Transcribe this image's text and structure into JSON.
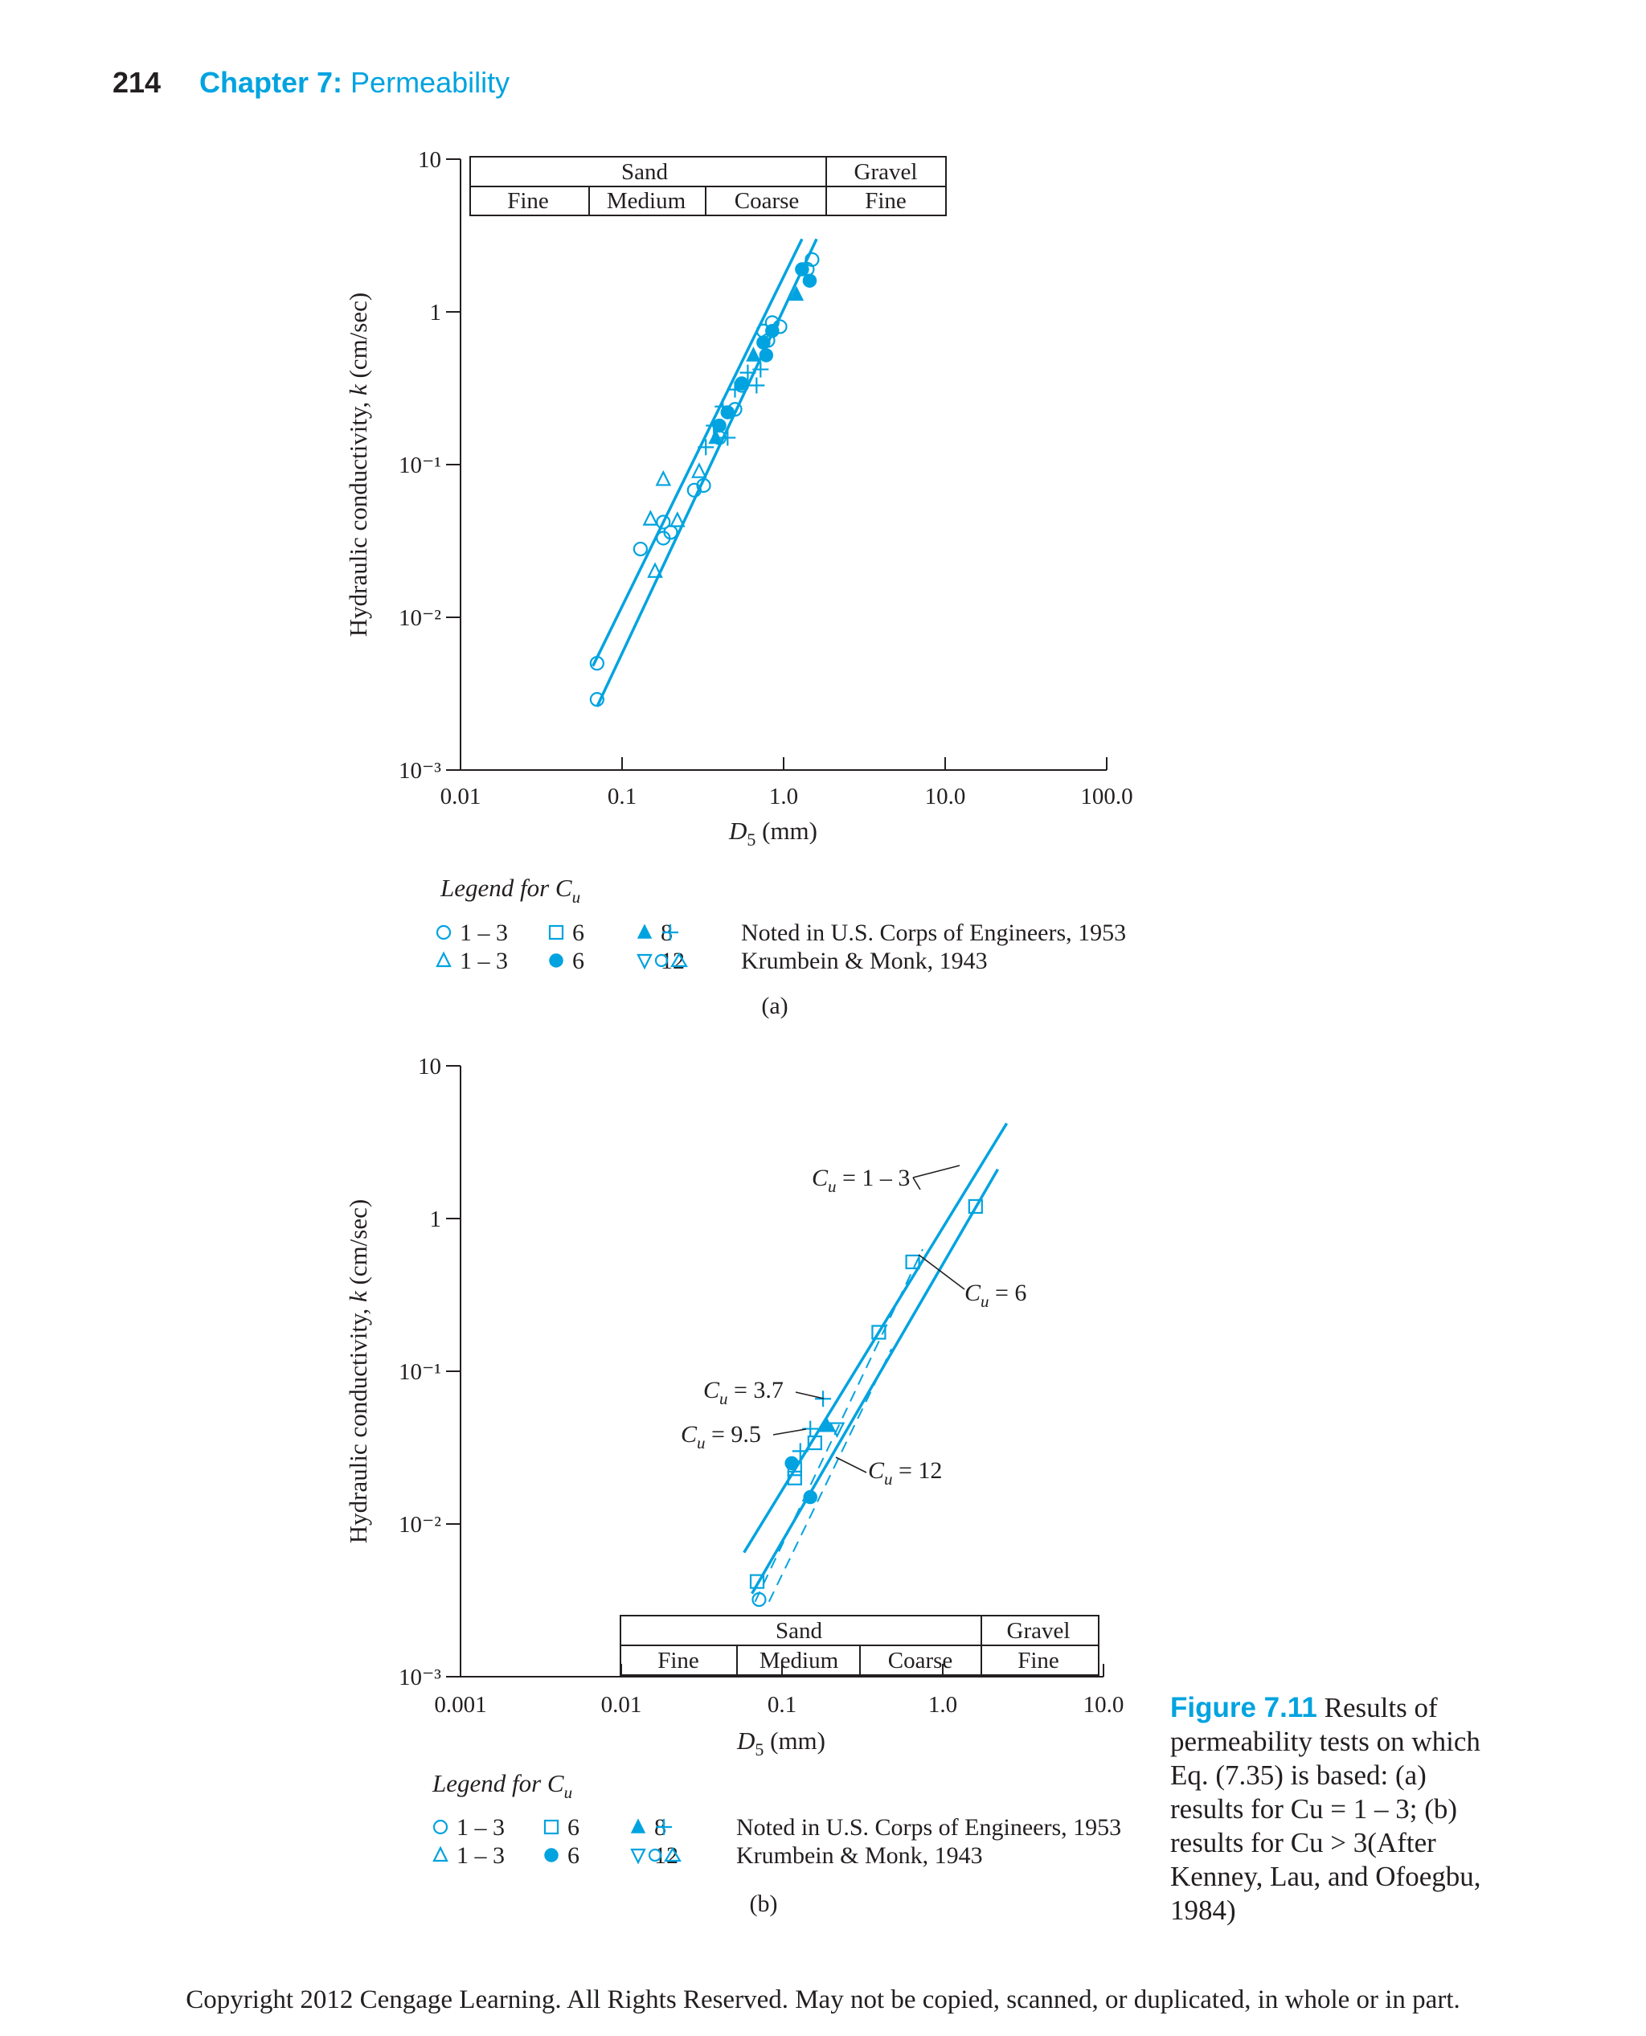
{
  "header": {
    "page_number": "214",
    "chapter_label": "Chapter 7:",
    "chapter_title": "Permeability"
  },
  "colors": {
    "accent": "#00a3e0",
    "text": "#231f20"
  },
  "chart_data": [
    {
      "type": "scatter",
      "panel_label": "(a)",
      "xlabel": "D5 (mm)",
      "ylabel": "Hydraulic conductivity, k (cm/sec)",
      "x_scale": "log",
      "y_scale": "log",
      "xlim": [
        0.01,
        100
      ],
      "ylim": [
        0.001,
        10
      ],
      "xticks": [
        "0.01",
        "0.1",
        "1.0",
        "10.0",
        "100.0"
      ],
      "yticks": [
        "10⁻³",
        "10⁻²",
        "10⁻¹",
        "1",
        "10"
      ],
      "grain_size_table": {
        "groups": [
          "Sand",
          "Gravel"
        ],
        "classes": [
          "Fine",
          "Medium",
          "Coarse",
          "Fine"
        ]
      },
      "series": [
        {
          "marker": "circle-open",
          "label": "1 – 3",
          "points": [
            [
              0.07,
              0.005
            ],
            [
              0.07,
              0.0029
            ],
            [
              0.13,
              0.028
            ],
            [
              0.18,
              0.042
            ],
            [
              0.18,
              0.033
            ],
            [
              0.2,
              0.036
            ],
            [
              0.28,
              0.068
            ],
            [
              0.32,
              0.073
            ],
            [
              0.4,
              0.15
            ],
            [
              0.5,
              0.23
            ],
            [
              0.55,
              0.33
            ],
            [
              0.75,
              0.75
            ],
            [
              0.8,
              0.65
            ],
            [
              0.85,
              0.85
            ],
            [
              0.95,
              0.8
            ],
            [
              1.4,
              1.9
            ],
            [
              1.5,
              2.2
            ]
          ]
        },
        {
          "marker": "triangle-open",
          "label": "1 – 3",
          "points": [
            [
              0.15,
              0.044
            ],
            [
              0.16,
              0.02
            ],
            [
              0.18,
              0.08
            ],
            [
              0.22,
              0.043
            ],
            [
              0.3,
              0.09
            ]
          ]
        },
        {
          "marker": "circle-filled",
          "label": "6",
          "points": [
            [
              0.4,
              0.18
            ],
            [
              0.45,
              0.22
            ],
            [
              0.55,
              0.34
            ],
            [
              0.75,
              0.63
            ],
            [
              0.78,
              0.52
            ],
            [
              0.85,
              0.75
            ],
            [
              1.3,
              1.9
            ],
            [
              1.45,
              1.6
            ]
          ]
        },
        {
          "marker": "triangle-filled",
          "label": "8",
          "points": [
            [
              0.38,
              0.15
            ],
            [
              0.65,
              0.52
            ],
            [
              1.2,
              1.3
            ]
          ]
        },
        {
          "marker": "plus",
          "label": "Noted in U.S. Corps of Engineers, 1953",
          "points": [
            [
              0.33,
              0.13
            ],
            [
              0.37,
              0.18
            ],
            [
              0.42,
              0.24
            ],
            [
              0.45,
              0.15
            ],
            [
              0.5,
              0.31
            ],
            [
              0.6,
              0.4
            ],
            [
              0.68,
              0.33
            ],
            [
              0.72,
              0.42
            ]
          ]
        }
      ],
      "lines": [
        {
          "from": [
            0.07,
            0.0026
          ],
          "to": [
            1.6,
            3.0
          ]
        },
        {
          "from": [
            0.066,
            0.0048
          ],
          "to": [
            1.3,
            3.0
          ]
        }
      ],
      "legend": {
        "title": "Legend for Cu",
        "row1": [
          {
            "marker": "circle-open",
            "text": "1 – 3"
          },
          {
            "marker": "square-open",
            "text": "6"
          },
          {
            "marker": "triangle-filled",
            "text": "8"
          },
          {
            "marker": "plus",
            "text": "Noted in U.S. Corps of Engineers, 1953"
          }
        ],
        "row2": [
          {
            "marker": "triangle-open",
            "text": "1 – 3"
          },
          {
            "marker": "circle-filled",
            "text": "6"
          },
          {
            "marker": "triangle-down-open",
            "text": "12"
          },
          {
            "marker": "circle-triangle-open",
            "text": "Krumbein & Monk, 1943"
          }
        ]
      }
    },
    {
      "type": "scatter",
      "panel_label": "(b)",
      "xlabel": "D5 (mm)",
      "ylabel": "Hydraulic conductivity, k (cm/sec)",
      "x_scale": "log",
      "y_scale": "log",
      "xlim": [
        0.001,
        10
      ],
      "ylim": [
        0.001,
        10
      ],
      "xticks": [
        "0.001",
        "0.01",
        "0.1",
        "1.0",
        "10.0"
      ],
      "yticks": [
        "10⁻³",
        "10⁻²",
        "10⁻¹",
        "1",
        "10"
      ],
      "grain_size_table": {
        "groups": [
          "Sand",
          "Gravel"
        ],
        "classes": [
          "Fine",
          "Medium",
          "Coarse",
          "Fine"
        ]
      },
      "series": [
        {
          "marker": "square-open",
          "label": "6",
          "points": [
            [
              0.07,
              0.0042
            ],
            [
              0.12,
              0.023
            ],
            [
              0.12,
              0.02
            ],
            [
              0.16,
              0.034
            ],
            [
              0.4,
              0.18
            ],
            [
              0.65,
              0.52
            ],
            [
              1.6,
              1.2
            ]
          ]
        },
        {
          "marker": "circle-filled",
          "label": "6",
          "points": [
            [
              0.115,
              0.025
            ],
            [
              0.15,
              0.015
            ]
          ]
        },
        {
          "marker": "triangle-filled",
          "label": "8",
          "points": [
            [
              0.19,
              0.044
            ]
          ]
        },
        {
          "marker": "triangle-down-open",
          "label": "12",
          "points": [
            [
              0.22,
              0.042
            ]
          ]
        },
        {
          "marker": "circle-open",
          "label": "1 – 3",
          "points": [
            [
              0.072,
              0.0032
            ]
          ]
        },
        {
          "marker": "plus",
          "label": "Noted in U.S. Corps of Engineers, 1953",
          "points": [
            [
              0.13,
              0.03
            ],
            [
              0.15,
              0.042
            ],
            [
              0.18,
              0.066
            ]
          ]
        }
      ],
      "lines": [
        {
          "style": "solid",
          "from": [
            0.058,
            0.0065
          ],
          "to": [
            2.5,
            4.2
          ]
        },
        {
          "style": "solid",
          "from": [
            0.065,
            0.0035
          ],
          "to": [
            2.2,
            2.1
          ]
        },
        {
          "style": "dashed",
          "from": [
            0.068,
            0.0031
          ],
          "to": [
            0.75,
            0.63
          ]
        },
        {
          "style": "dashed",
          "from": [
            0.083,
            0.0031
          ],
          "to": [
            0.48,
            0.14
          ]
        }
      ],
      "annotations": [
        "Cu = 1 – 3",
        "Cu = 6",
        "Cu = 3.7",
        "Cu = 9.5",
        "Cu = 12"
      ],
      "legend": {
        "title": "Legend for Cu",
        "row1": [
          {
            "marker": "circle-open",
            "text": "1 – 3"
          },
          {
            "marker": "square-open",
            "text": "6"
          },
          {
            "marker": "triangle-filled",
            "text": "8"
          },
          {
            "marker": "plus",
            "text": "Noted in U.S. Corps of Engineers, 1953"
          }
        ],
        "row2": [
          {
            "marker": "triangle-open",
            "text": "1 – 3"
          },
          {
            "marker": "circle-filled",
            "text": "6"
          },
          {
            "marker": "triangle-down-open",
            "text": "12"
          },
          {
            "marker": "circle-triangle-open",
            "text": "Krumbein & Monk, 1943"
          }
        ]
      }
    }
  ],
  "caption": {
    "label": "Figure 7.11",
    "text": "Results of permeability tests on which Eq. (7.35) is based: (a) results for Cu = 1 – 3; (b) results for Cu > 3(After Kenney, Lau, and Ofoegbu, 1984)"
  },
  "footer": "Copyright 2012 Cengage Learning. All Rights Reserved. May not be copied, scanned, or duplicated, in whole or in part."
}
